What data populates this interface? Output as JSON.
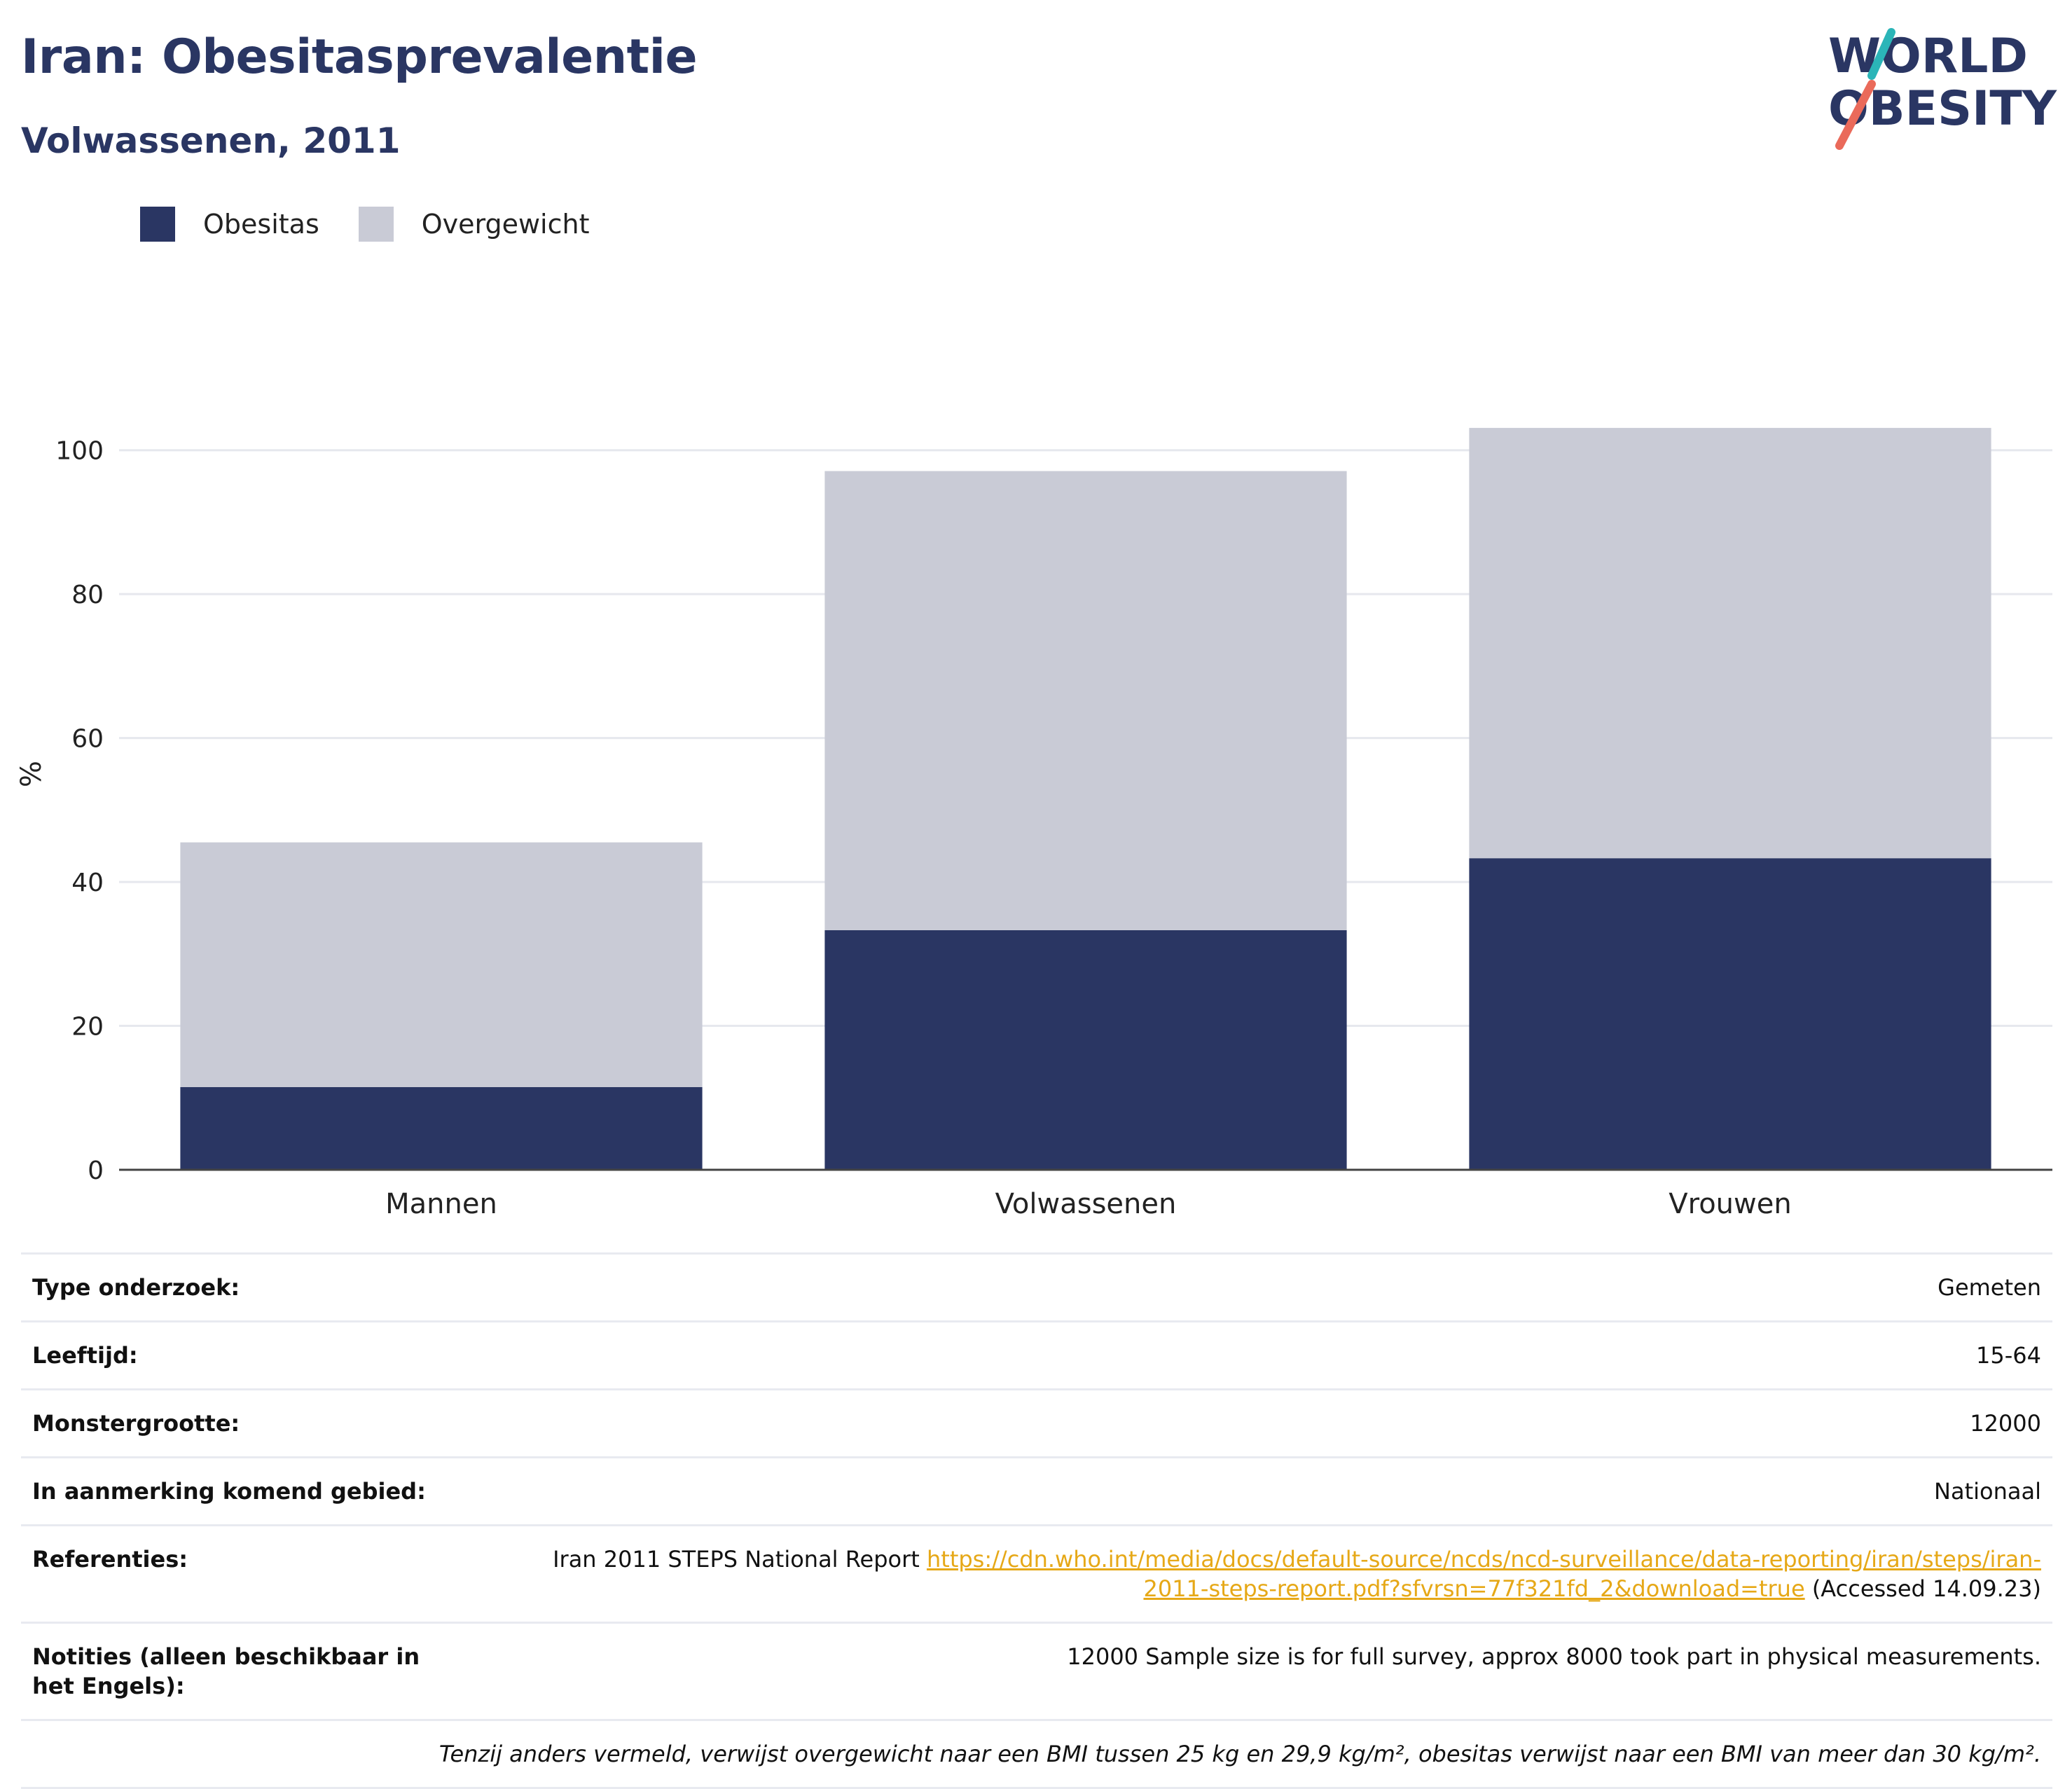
{
  "header": {
    "title": "Iran: Obesitasprevalentie",
    "subtitle": "Volwassenen, 2011"
  },
  "logo": {
    "line1": "WORLD",
    "line2": "OBESITY"
  },
  "colors": {
    "obesity": "#2a3663",
    "overweight": "#c9cbd6",
    "brand": "#2a3663",
    "link": "#e6a817",
    "logo_teal": "#2bb5b8",
    "logo_coral": "#ea6a5a"
  },
  "chart_data": {
    "type": "bar",
    "stacked": true,
    "categories": [
      "Mannen",
      "Volwassenen",
      "Vrouwen"
    ],
    "series": [
      {
        "name": "Obesitas",
        "values": [
          11.5,
          33.3,
          43.3
        ]
      },
      {
        "name": "Overgewicht",
        "values": [
          34.0,
          63.8,
          59.8
        ]
      }
    ],
    "ylabel": "%",
    "ylim": [
      0,
      110
    ],
    "yticks": [
      0,
      20,
      40,
      60,
      80,
      100
    ],
    "grid": true,
    "legend": "top-left"
  },
  "info": {
    "survey_type": {
      "label": "Type onderzoek:",
      "value": "Gemeten"
    },
    "age": {
      "label": "Leeftijd:",
      "value": "15-64"
    },
    "sample": {
      "label": "Monstergrootte:",
      "value": "12000"
    },
    "area": {
      "label": "In aanmerking komend gebied:",
      "value": "Nationaal"
    },
    "references": {
      "label": "Referenties:",
      "prefix": "Iran 2011 STEPS National Report ",
      "link_line1": "https://cdn.who.int/media/docs/default-source/ncds/ncd-surveillance/data-reporting/iran/steps/iran-",
      "link_line2": "2011-steps-report.pdf?sfvrsn=77f321fd_2&download=true",
      "suffix": " (Accessed 14.09.23)"
    },
    "notes": {
      "label": "Notities (alleen beschikbaar in het Engels):",
      "value": "12000 Sample size is for full survey, approx 8000 took part in physical measurements."
    },
    "footnote": "Tenzij anders vermeld, verwijst overgewicht naar een BMI tussen 25 kg en 29,9 kg/m², obesitas verwijst naar een BMI van meer dan 30 kg/m²."
  }
}
